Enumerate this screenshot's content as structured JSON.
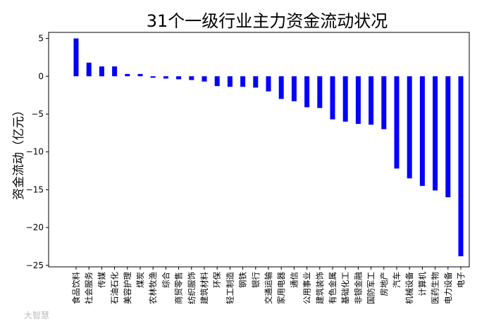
{
  "watermark": "大智慧",
  "colors": {
    "bar": "#0000ff",
    "axis": "#000000",
    "watermark": "#bdbdbd"
  },
  "chart_data": {
    "type": "bar",
    "title": "31个一级行业主力资金流动状况",
    "xlabel": "",
    "ylabel": "资金流动（亿元）",
    "ylim": [
      -25.2,
      5.8
    ],
    "yticks": [
      5,
      0,
      -5,
      -10,
      -15,
      -20,
      -25
    ],
    "grid": false,
    "categories": [
      "食品饮料",
      "社会服务",
      "传媒",
      "石油石化",
      "美容护理",
      "煤炭",
      "农林牧渔",
      "综合",
      "商贸零售",
      "纺织服饰",
      "建筑材料",
      "环保",
      "轻工制造",
      "钢铁",
      "银行",
      "交通运输",
      "家用电器",
      "通信",
      "公用事业",
      "建筑装饰",
      "有色金属",
      "基础化工",
      "非银金融",
      "国防军工",
      "房地产",
      "汽车",
      "机械设备",
      "计算机",
      "医药生物",
      "电力设备",
      "电子"
    ],
    "values": [
      5.0,
      1.8,
      1.3,
      1.3,
      0.3,
      0.3,
      -0.2,
      -0.3,
      -0.4,
      -0.5,
      -0.7,
      -1.3,
      -1.4,
      -1.4,
      -1.5,
      -2.0,
      -3.0,
      -3.3,
      -4.1,
      -4.2,
      -5.7,
      -6.0,
      -6.3,
      -6.4,
      -7.0,
      -12.2,
      -13.5,
      -14.5,
      -15.1,
      -16.0,
      -23.8
    ]
  }
}
